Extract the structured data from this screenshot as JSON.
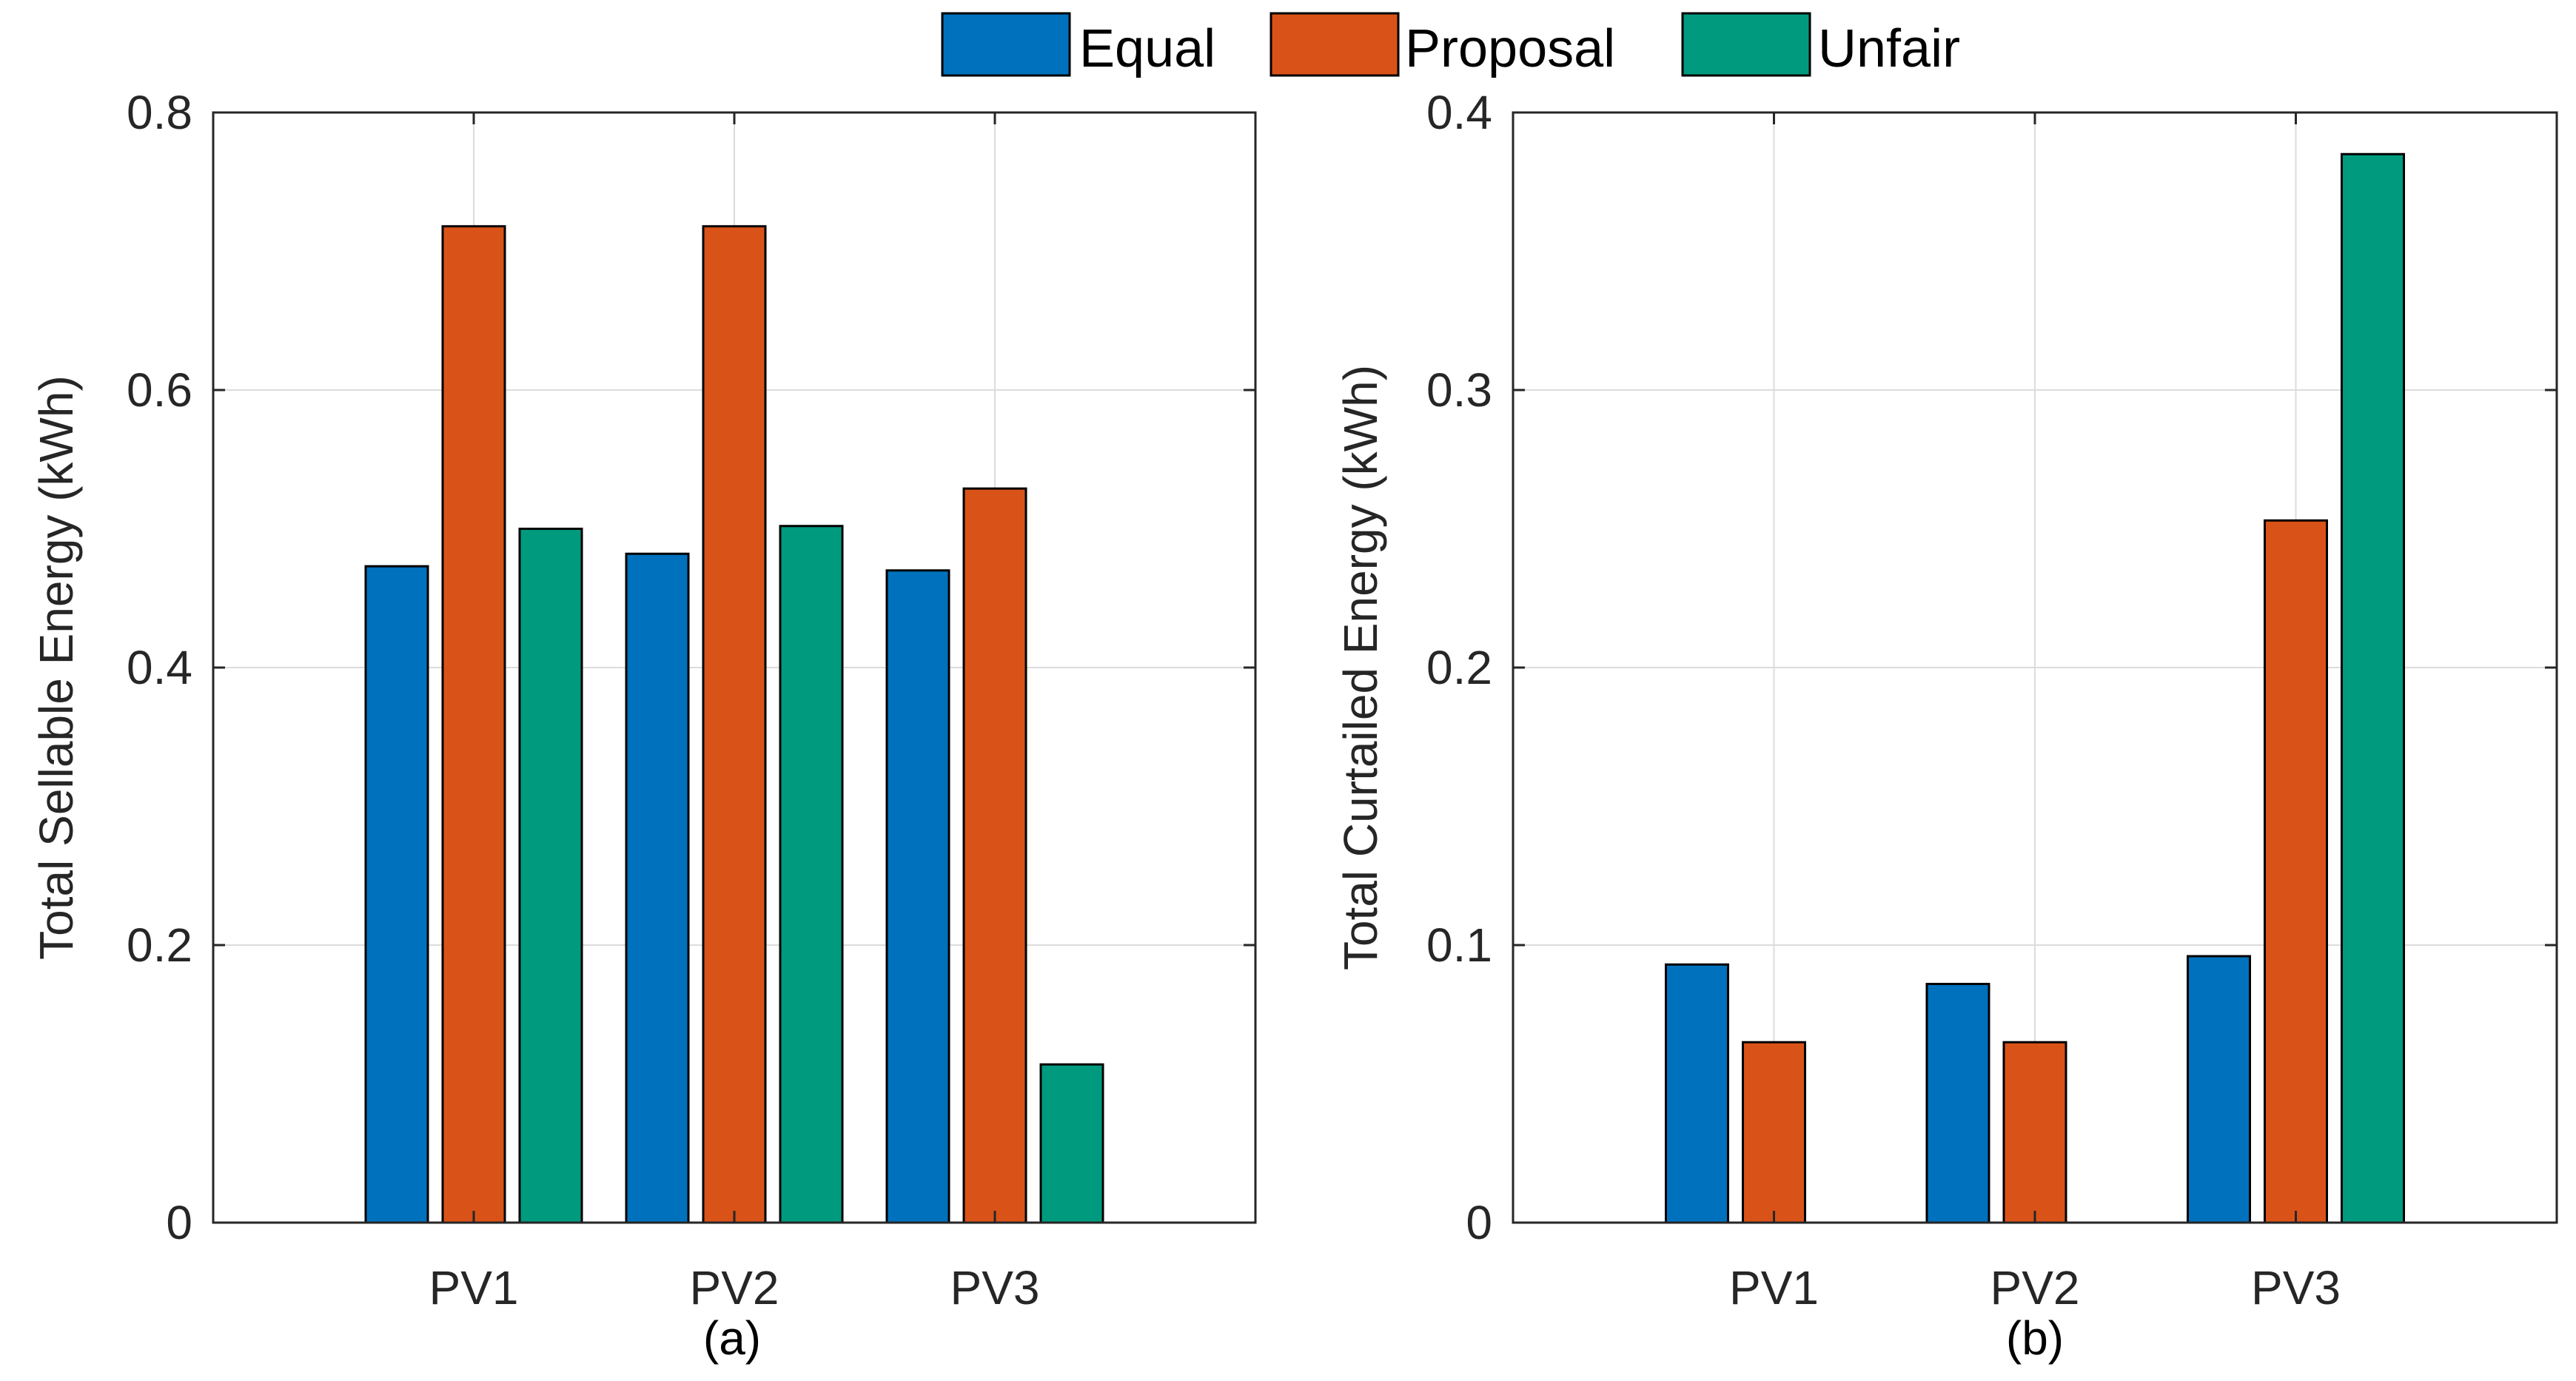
{
  "legend": {
    "items": [
      {
        "label": "Equal",
        "color": "#0072BD"
      },
      {
        "label": "Proposal",
        "color": "#D95319"
      },
      {
        "label": "Unfair",
        "color": "#009B7F"
      }
    ]
  },
  "chart_data": [
    {
      "type": "bar",
      "title": "",
      "caption": "(a)",
      "xlabel": "",
      "ylabel": "Total Sellable Energy (kWh)",
      "categories": [
        "PV1",
        "PV2",
        "PV3"
      ],
      "ylim": [
        0,
        0.8
      ],
      "yticks": [
        0,
        0.2,
        0.4,
        0.6,
        0.8
      ],
      "ytick_labels": [
        "0",
        "0.2",
        "0.4",
        "0.6",
        "0.8"
      ],
      "grid": true,
      "series": [
        {
          "name": "Equal",
          "values": [
            0.473,
            0.482,
            0.47
          ]
        },
        {
          "name": "Proposal",
          "values": [
            0.718,
            0.718,
            0.529
          ]
        },
        {
          "name": "Unfair",
          "values": [
            0.5,
            0.502,
            0.114
          ]
        }
      ]
    },
    {
      "type": "bar",
      "title": "",
      "caption": "(b)",
      "xlabel": "",
      "ylabel": "Total Curtailed Energy (kWh)",
      "categories": [
        "PV1",
        "PV2",
        "PV3"
      ],
      "ylim": [
        0,
        0.4
      ],
      "yticks": [
        0,
        0.1,
        0.2,
        0.3,
        0.4
      ],
      "ytick_labels": [
        "0",
        "0.1",
        "0.2",
        "0.3",
        "0.4"
      ],
      "grid": true,
      "series": [
        {
          "name": "Equal",
          "values": [
            0.093,
            0.086,
            0.096
          ]
        },
        {
          "name": "Proposal",
          "values": [
            0.065,
            0.065,
            0.253
          ]
        },
        {
          "name": "Unfair",
          "values": [
            0,
            0,
            0.385
          ]
        }
      ]
    }
  ]
}
